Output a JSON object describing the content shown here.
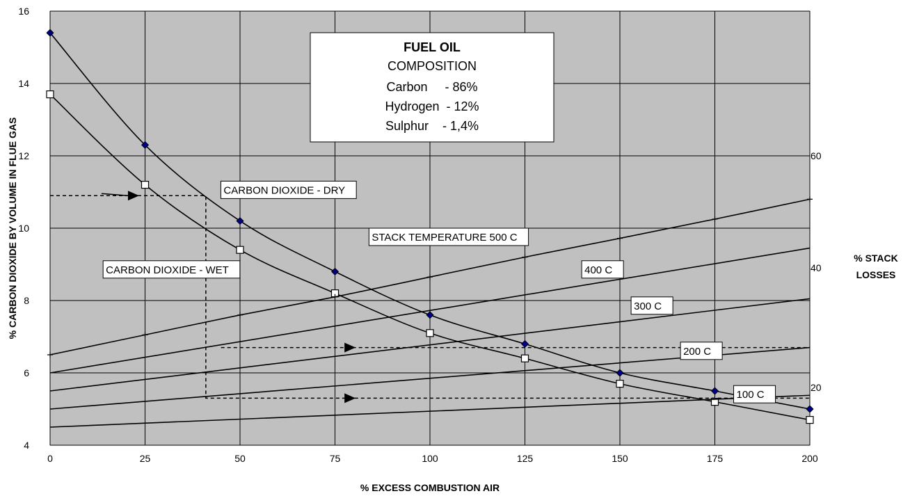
{
  "chart_data": {
    "type": "line",
    "xlabel": "% EXCESS COMBUSTION AIR",
    "ylabel": "% CARBON DIOXIDE BY VOLUME IN FLUE GAS",
    "xlim": [
      0,
      200
    ],
    "ylim": [
      4,
      16
    ],
    "x_ticks": [
      "0",
      "25",
      "50",
      "75",
      "100",
      "125",
      "150",
      "175",
      "200"
    ],
    "y_ticks": [
      "4",
      "6",
      "8",
      "10",
      "12",
      "14",
      "16"
    ],
    "grid": true,
    "plot_background": "#c0c0c0",
    "secondary_axis": {
      "title_line1": "% STACK",
      "title_line2": "LOSSES",
      "ticks": [
        {
          "label": "20",
          "y": 5.6
        },
        {
          "label": "40",
          "y": 8.9
        },
        {
          "label": "60",
          "y": 12.0
        }
      ]
    },
    "composition": {
      "title": "FUEL OIL",
      "subtitle": "COMPOSITION",
      "lines": [
        "Carbon     - 86%",
        "Hydrogen  - 12%",
        "Sulphur    - 1,4%"
      ]
    },
    "series": [
      {
        "name": "CARBON DIOXIDE - DRY",
        "marker": "diamond",
        "color": "#000080",
        "x": [
          0,
          25,
          50,
          75,
          100,
          125,
          150,
          175,
          200
        ],
        "y": [
          15.4,
          12.3,
          10.2,
          8.8,
          7.6,
          6.8,
          6.0,
          5.5,
          5.0
        ]
      },
      {
        "name": "CARBON DIOXIDE - WET",
        "marker": "square",
        "color": "#000000",
        "x": [
          0,
          25,
          50,
          75,
          100,
          125,
          150,
          175,
          200
        ],
        "y": [
          13.7,
          11.2,
          9.4,
          8.2,
          7.1,
          6.4,
          5.7,
          5.2,
          4.7
        ]
      },
      {
        "name": "STACK TEMPERATURE 500 C",
        "marker": "plus",
        "color": "#000000",
        "x": [
          0,
          25,
          50,
          75,
          100,
          125,
          150,
          175,
          200
        ],
        "y": [
          6.5,
          7.05,
          7.6,
          8.1,
          8.65,
          9.2,
          9.72,
          10.25,
          10.8
        ]
      },
      {
        "name": "400 C",
        "marker": "none",
        "color": "#000000",
        "x": [
          0,
          200
        ],
        "y": [
          6.0,
          9.45
        ]
      },
      {
        "name": "300 C",
        "marker": "none",
        "color": "#000000",
        "x": [
          0,
          200
        ],
        "y": [
          5.5,
          8.05
        ]
      },
      {
        "name": "200 C",
        "marker": "none",
        "color": "#000000",
        "x": [
          0,
          200
        ],
        "y": [
          5.0,
          6.7
        ]
      },
      {
        "name": "100 C",
        "marker": "none",
        "color": "#000000",
        "x": [
          0,
          200
        ],
        "y": [
          4.5,
          5.38
        ]
      }
    ],
    "annotations": [
      {
        "text": "CARBON DIOXIDE - DRY",
        "x": 45.5,
        "y": 11.05
      },
      {
        "text": "STACK TEMPERATURE 500 C",
        "x": 84.5,
        "y": 9.75
      },
      {
        "text": "CARBON DIOXIDE - WET",
        "x": 14.5,
        "y": 8.85
      },
      {
        "text": "400 C",
        "x": 140.5,
        "y": 8.85
      },
      {
        "text": "300 C",
        "x": 153.5,
        "y": 7.85
      },
      {
        "text": "200 C",
        "x": 166.5,
        "y": 6.6
      },
      {
        "text": "100 C",
        "x": 180.5,
        "y": 5.4
      }
    ],
    "guide_lines": [
      {
        "x": [
          0,
          41,
          41,
          200
        ],
        "y": [
          10.9,
          10.9,
          5.3,
          5.3
        ]
      },
      {
        "x": [
          45,
          200
        ],
        "y": [
          6.7,
          6.7
        ]
      }
    ],
    "guide_arrows": [
      {
        "x": 20.5,
        "y": 10.9
      },
      {
        "x": 77.5,
        "y": 6.7
      },
      {
        "x": 77.5,
        "y": 5.3
      }
    ]
  }
}
